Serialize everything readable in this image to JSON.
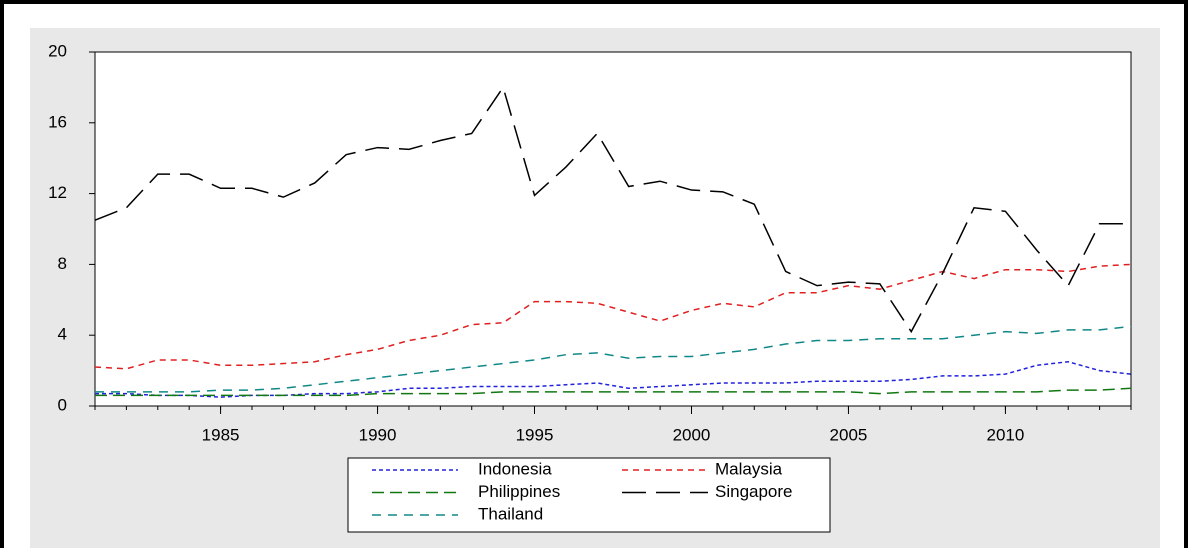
{
  "chart_data": {
    "type": "line",
    "x": [
      1981,
      1982,
      1983,
      1984,
      1985,
      1986,
      1987,
      1988,
      1989,
      1990,
      1991,
      1992,
      1993,
      1994,
      1995,
      1996,
      1997,
      1998,
      1999,
      2000,
      2001,
      2002,
      2003,
      2004,
      2005,
      2006,
      2007,
      2008,
      2009,
      2010,
      2011,
      2012,
      2013,
      2014
    ],
    "series": [
      {
        "name": "Indonesia",
        "color": "#2222dd",
        "values": [
          0.7,
          0.7,
          0.6,
          0.6,
          0.5,
          0.6,
          0.6,
          0.7,
          0.7,
          0.8,
          1.0,
          1.0,
          1.1,
          1.1,
          1.1,
          1.2,
          1.3,
          1.0,
          1.1,
          1.2,
          1.3,
          1.3,
          1.3,
          1.4,
          1.4,
          1.4,
          1.5,
          1.7,
          1.7,
          1.8,
          2.3,
          2.5,
          2.0,
          1.8
        ]
      },
      {
        "name": "Malaysia",
        "color": "#e02020",
        "values": [
          2.2,
          2.1,
          2.6,
          2.6,
          2.3,
          2.3,
          2.4,
          2.5,
          2.9,
          3.2,
          3.7,
          4.0,
          4.6,
          4.7,
          5.9,
          5.9,
          5.8,
          5.3,
          4.8,
          5.4,
          5.8,
          5.6,
          6.4,
          6.4,
          6.8,
          6.6,
          7.1,
          7.6,
          7.2,
          7.7,
          7.7,
          7.6,
          7.9,
          8.0
        ]
      },
      {
        "name": "Philippines",
        "color": "#117711",
        "values": [
          0.6,
          0.6,
          0.6,
          0.6,
          0.6,
          0.6,
          0.6,
          0.6,
          0.6,
          0.7,
          0.7,
          0.7,
          0.7,
          0.8,
          0.8,
          0.8,
          0.8,
          0.8,
          0.8,
          0.8,
          0.8,
          0.8,
          0.8,
          0.8,
          0.8,
          0.7,
          0.8,
          0.8,
          0.8,
          0.8,
          0.8,
          0.9,
          0.9,
          1.0
        ]
      },
      {
        "name": "Singapore",
        "color": "#000000",
        "values": [
          10.5,
          11.2,
          13.1,
          13.1,
          12.3,
          12.3,
          11.8,
          12.6,
          14.2,
          14.6,
          14.5,
          15.0,
          15.4,
          18.0,
          11.9,
          13.5,
          15.4,
          12.4,
          12.7,
          12.2,
          12.1,
          11.4,
          7.6,
          6.8,
          7.0,
          6.9,
          4.2,
          7.5,
          11.2,
          11.0,
          8.8,
          6.8,
          10.3,
          10.3
        ]
      },
      {
        "name": "Thailand",
        "color": "#118888",
        "values": [
          0.8,
          0.8,
          0.8,
          0.8,
          0.9,
          0.9,
          1.0,
          1.2,
          1.4,
          1.6,
          1.8,
          2.0,
          2.2,
          2.4,
          2.6,
          2.9,
          3.0,
          2.7,
          2.8,
          2.8,
          3.0,
          3.2,
          3.5,
          3.7,
          3.7,
          3.8,
          3.8,
          3.8,
          4.0,
          4.2,
          4.1,
          4.3,
          4.3,
          4.5
        ]
      }
    ],
    "xlim": [
      1981,
      2014
    ],
    "xticks": [
      1985,
      1990,
      1995,
      2000,
      2005,
      2010
    ],
    "ylim": [
      0,
      20
    ],
    "yticks": [
      0,
      4,
      8,
      12,
      16,
      20
    ]
  }
}
